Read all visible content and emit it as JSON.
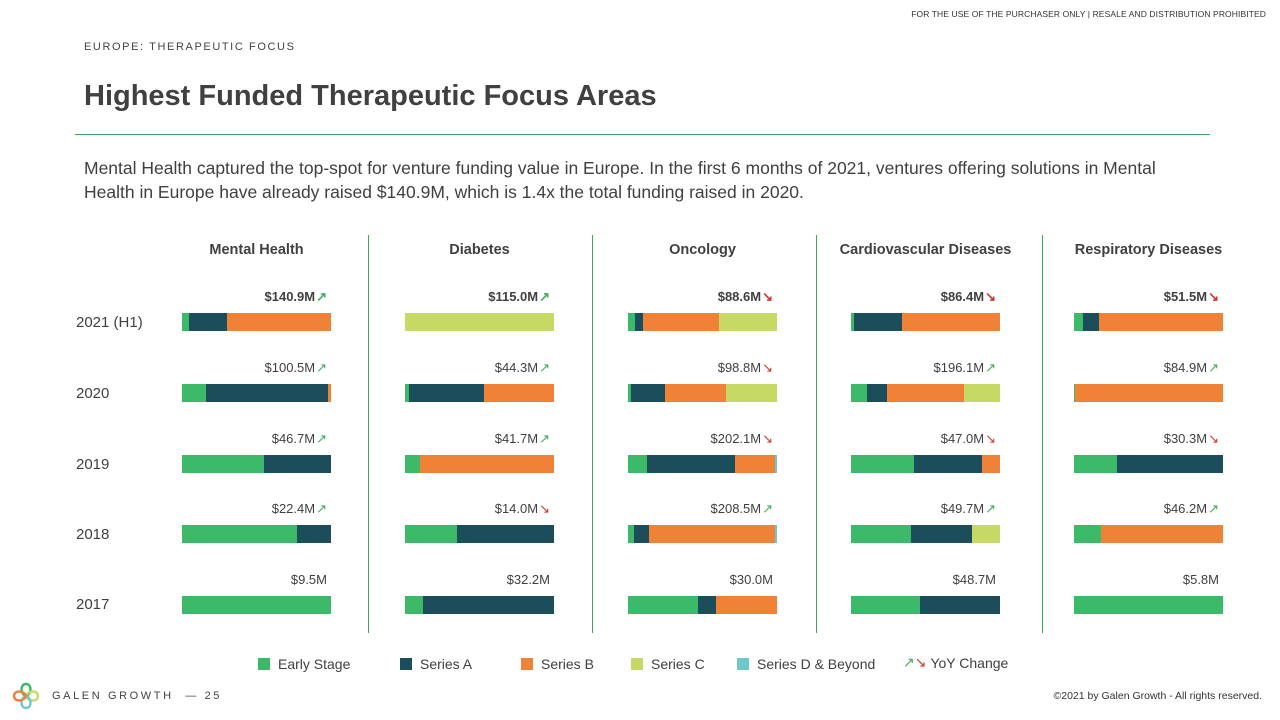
{
  "header": {
    "top_note": "FOR THE USE OF THE PURCHASER ONLY | RESALE AND DISTRIBUTION PROHIBITED",
    "kicker": "EUROPE: THERAPEUTIC FOCUS",
    "title": "Highest Funded Therapeutic Focus Areas",
    "description": "Mental Health captured the top-spot for venture funding value in Europe. In the first 6 months of 2021, ventures offering solutions in Mental Health in Europe have already raised $140.9M, which is 1.4x the total funding raised in 2020."
  },
  "chart_data": {
    "type": "bar",
    "stacking": "100% stacked horizontal bars, one small multiple per therapeutic area",
    "rows": [
      "2021 (H1)",
      "2020",
      "2019",
      "2018",
      "2017"
    ],
    "stage_keys": [
      "early",
      "a",
      "b",
      "c",
      "d"
    ],
    "colors": {
      "early": "#3dba69",
      "a": "#1b4d5a",
      "b": "#ef8236",
      "c": "#c6d964",
      "d": "#6cc9c7",
      "up": "#3dae5e",
      "down": "#d0342c"
    },
    "panels": [
      {
        "title": "Mental Health",
        "bars": [
          {
            "total": "$140.9M",
            "yoy": "up",
            "shares": {
              "early": 5,
              "a": 25,
              "b": 70,
              "c": 0,
              "d": 0
            }
          },
          {
            "total": "$100.5M",
            "yoy": "up",
            "shares": {
              "early": 16,
              "a": 82,
              "b": 2,
              "c": 0,
              "d": 0
            }
          },
          {
            "total": "$46.7M",
            "yoy": "up",
            "shares": {
              "early": 55,
              "a": 45,
              "b": 0,
              "c": 0,
              "d": 0
            }
          },
          {
            "total": "$22.4M",
            "yoy": "up",
            "shares": {
              "early": 77,
              "a": 23,
              "b": 0,
              "c": 0,
              "d": 0
            }
          },
          {
            "total": "$9.5M",
            "yoy": "",
            "shares": {
              "early": 100,
              "a": 0,
              "b": 0,
              "c": 0,
              "d": 0
            }
          }
        ]
      },
      {
        "title": "Diabetes",
        "bars": [
          {
            "total": "$115.0M",
            "yoy": "up",
            "shares": {
              "early": 0,
              "a": 0,
              "b": 0,
              "c": 100,
              "d": 0
            }
          },
          {
            "total": "$44.3M",
            "yoy": "up",
            "shares": {
              "early": 3,
              "a": 50,
              "b": 47,
              "c": 0,
              "d": 0
            }
          },
          {
            "total": "$41.7M",
            "yoy": "up",
            "shares": {
              "early": 10,
              "a": 0,
              "b": 90,
              "c": 0,
              "d": 0
            }
          },
          {
            "total": "$14.0M",
            "yoy": "down",
            "shares": {
              "early": 35,
              "a": 65,
              "b": 0,
              "c": 0,
              "d": 0
            }
          },
          {
            "total": "$32.2M",
            "yoy": "",
            "shares": {
              "early": 12,
              "a": 88,
              "b": 0,
              "c": 0,
              "d": 0
            }
          }
        ]
      },
      {
        "title": "Oncology",
        "bars": [
          {
            "total": "$88.6M",
            "yoy": "down",
            "shares": {
              "early": 5,
              "a": 5,
              "b": 51,
              "c": 39,
              "d": 0
            }
          },
          {
            "total": "$98.8M",
            "yoy": "down",
            "shares": {
              "early": 2,
              "a": 23,
              "b": 41,
              "c": 34,
              "d": 0
            }
          },
          {
            "total": "$202.1M",
            "yoy": "down",
            "shares": {
              "early": 13,
              "a": 59,
              "b": 27,
              "c": 0,
              "d": 1
            }
          },
          {
            "total": "$208.5M",
            "yoy": "up",
            "shares": {
              "early": 4,
              "a": 10,
              "b": 85,
              "c": 0,
              "d": 1
            }
          },
          {
            "total": "$30.0M",
            "yoy": "",
            "shares": {
              "early": 47,
              "a": 12,
              "b": 41,
              "c": 0,
              "d": 0
            }
          }
        ]
      },
      {
        "title": "Cardiovascular Diseases",
        "bars": [
          {
            "total": "$86.4M",
            "yoy": "down",
            "shares": {
              "early": 2,
              "a": 32,
              "b": 66,
              "c": 0,
              "d": 0
            }
          },
          {
            "total": "$196.1M",
            "yoy": "up",
            "shares": {
              "early": 11,
              "a": 13,
              "b": 52,
              "c": 24,
              "d": 0
            }
          },
          {
            "total": "$47.0M",
            "yoy": "down",
            "shares": {
              "early": 42,
              "a": 46,
              "b": 12,
              "c": 0,
              "d": 0
            }
          },
          {
            "total": "$49.7M",
            "yoy": "up",
            "shares": {
              "early": 40,
              "a": 41,
              "b": 0,
              "c": 19,
              "d": 0
            }
          },
          {
            "total": "$48.7M",
            "yoy": "",
            "shares": {
              "early": 46,
              "a": 54,
              "b": 0,
              "c": 0,
              "d": 0
            }
          }
        ]
      },
      {
        "title": "Respiratory Diseases",
        "bars": [
          {
            "total": "$51.5M",
            "yoy": "down",
            "shares": {
              "early": 6,
              "a": 11,
              "b": 83,
              "c": 0,
              "d": 0
            }
          },
          {
            "total": "$84.9M",
            "yoy": "up",
            "shares": {
              "early": 1,
              "a": 0,
              "b": 99,
              "c": 0,
              "d": 0
            }
          },
          {
            "total": "$30.3M",
            "yoy": "down",
            "shares": {
              "early": 29,
              "a": 71,
              "b": 0,
              "c": 0,
              "d": 0
            }
          },
          {
            "total": "$46.2M",
            "yoy": "up",
            "shares": {
              "early": 18,
              "a": 0,
              "b": 82,
              "c": 0,
              "d": 0
            }
          },
          {
            "total": "$5.8M",
            "yoy": "",
            "shares": {
              "early": 100,
              "a": 0,
              "b": 0,
              "c": 0,
              "d": 0
            }
          }
        ]
      }
    ],
    "legend": [
      {
        "key": "early",
        "label": "Early Stage"
      },
      {
        "key": "a",
        "label": "Series A"
      },
      {
        "key": "b",
        "label": "Series B"
      },
      {
        "key": "c",
        "label": "Series C"
      },
      {
        "key": "d",
        "label": "Series D & Beyond"
      }
    ],
    "yoy_legend_label": "YoY Change"
  },
  "footer": {
    "brand": "GALEN GROWTH",
    "page": "— 25",
    "copyright": "©2021 by Galen Growth - All rights reserved."
  }
}
